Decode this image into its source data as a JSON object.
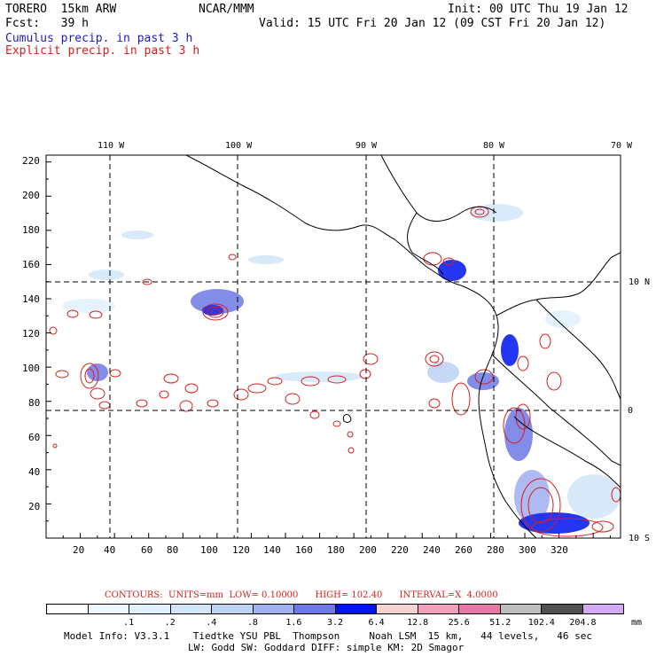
{
  "header": {
    "model": "TORERO  15km ARW",
    "center": "NCAR/MMM",
    "init": "Init: 00 UTC Thu 19 Jan 12",
    "fcst": "Fcst:   39 h",
    "valid": "Valid: 15 UTC Fri 20 Jan 12 (09 CST Fri 20 Jan 12)",
    "field1": "Cumulus precip. in past 3 h",
    "field2": "Explicit precip. in past 3 h"
  },
  "axes": {
    "lon_labels": [
      "110 W",
      "100 W",
      "90 W",
      "80 W",
      "70 W"
    ],
    "lat_labels": [
      "10 N",
      "0",
      "10 S"
    ],
    "y_ticks": [
      "220",
      "200",
      "180",
      "160",
      "140",
      "120",
      "100",
      "80",
      "60",
      "40",
      "20"
    ],
    "x_ticks": [
      "20",
      "40",
      "60",
      "80",
      "100",
      "120",
      "140",
      "160",
      "180",
      "200",
      "220",
      "240",
      "260",
      "280",
      "300",
      "320"
    ]
  },
  "contours": {
    "units": "UNITS=mm",
    "low": "LOW= 0.10000",
    "high": "HIGH= 102.40",
    "interval": "INTERVAL=X  4.0000",
    "label": "CONTOURS:"
  },
  "legend": {
    "colors": [
      "#ffffff",
      "#f0f8ff",
      "#e1f0ff",
      "#d2e6fa",
      "#bed2f5",
      "#a0aff0",
      "#6e78e6",
      "#0014f0",
      "#f5d2d2",
      "#f0a0b9",
      "#e678a5",
      "#bebebe",
      "#505050",
      "#d2aaf5"
    ],
    "labels": [
      ".1",
      ".2",
      ".4",
      ".8",
      "1.6",
      "3.2",
      "6.4",
      "12.8",
      "25.6",
      "51.2",
      "102.4",
      "204.8"
    ],
    "unit": "mm"
  },
  "footer": {
    "line1": "Model Info: V3.3.1    Tiedtke YSU PBL  Thompson     Noah LSM  15 km,   44 levels,   46 sec",
    "line2": "LW: Godd SW: Goddard DIFF: simple KM: 2D Smagor"
  }
}
